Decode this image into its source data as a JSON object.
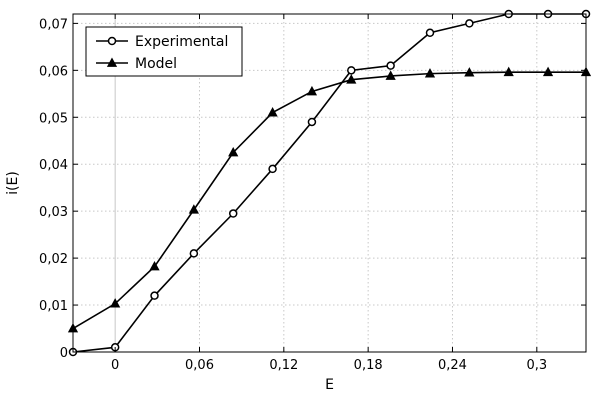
{
  "chart_data": {
    "type": "line",
    "title": "",
    "xlabel": "E",
    "ylabel": "i(E)",
    "xlim": [
      -0.03,
      0.335
    ],
    "ylim": [
      0,
      0.072
    ],
    "xticks": [
      0,
      0.06,
      0.12,
      0.18,
      0.24,
      0.3
    ],
    "xtick_labels": [
      "0",
      "0,06",
      "0,12",
      "0,18",
      "0,24",
      "0,3"
    ],
    "yticks": [
      0,
      0.01,
      0.02,
      0.03,
      0.04,
      0.05,
      0.06,
      0.07
    ],
    "ytick_labels": [
      "0",
      "0,01",
      "0,02",
      "0,03",
      "0,04",
      "0,05",
      "0,06",
      "0,07"
    ],
    "grid": true,
    "legend_position": "top-left",
    "series": [
      {
        "name": "Experimental",
        "marker": "circle",
        "x": [
          -0.03,
          0,
          0.028,
          0.056,
          0.084,
          0.112,
          0.14,
          0.168,
          0.196,
          0.224,
          0.252,
          0.28,
          0.308,
          0.335
        ],
        "y": [
          0,
          0.001,
          0.012,
          0.021,
          0.0295,
          0.039,
          0.049,
          0.06,
          0.061,
          0.068,
          0.07,
          0.072,
          0.072,
          0.072
        ]
      },
      {
        "name": "Model",
        "marker": "triangle",
        "x": [
          -0.03,
          0,
          0.028,
          0.056,
          0.084,
          0.112,
          0.14,
          0.168,
          0.196,
          0.224,
          0.252,
          0.28,
          0.308,
          0.335
        ],
        "y": [
          0.005,
          0.0103,
          0.0182,
          0.0303,
          0.0425,
          0.051,
          0.0555,
          0.058,
          0.0588,
          0.0593,
          0.0595,
          0.0596,
          0.0596,
          0.0596
        ]
      }
    ]
  }
}
